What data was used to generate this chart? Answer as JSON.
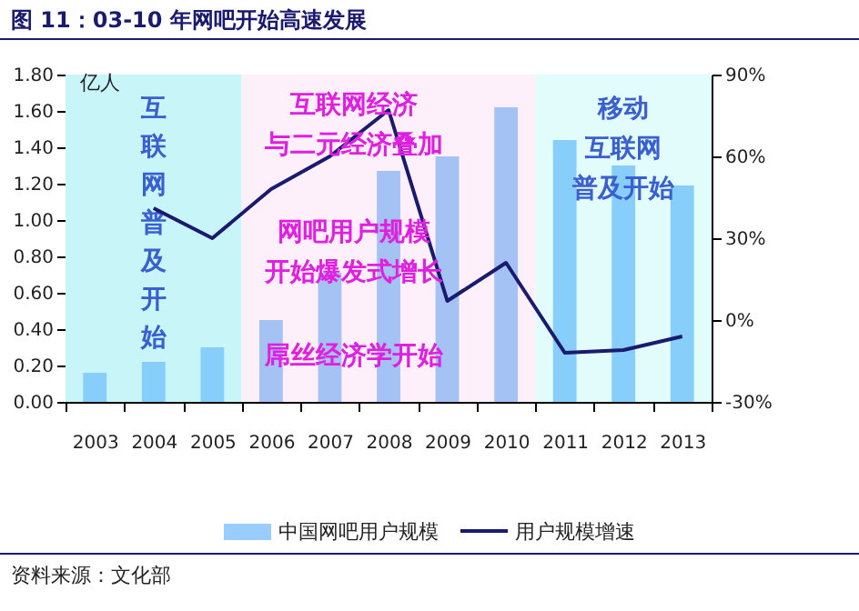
{
  "chart_data": {
    "type": "bar",
    "title": "图 11：03-10 年网吧开始高速发展",
    "ylabel": "亿人",
    "categories": [
      "2003",
      "2004",
      "2005",
      "2006",
      "2007",
      "2008",
      "2009",
      "2010",
      "2011",
      "2012",
      "2013"
    ],
    "series": [
      {
        "name": "中国网吧用户规模",
        "color": "#99ccff",
        "colors": [
          "#87cefa",
          "#87cefa",
          "#87cefa",
          "#a4c2f4",
          "#a4c2f4",
          "#a4c2f4",
          "#a4c2f4",
          "#a4c2f4",
          "#87cefa",
          "#87cefa",
          "#87cefa"
        ],
        "values": [
          0.16,
          0.22,
          0.3,
          0.45,
          0.71,
          1.27,
          1.35,
          1.62,
          1.44,
          1.3,
          1.19
        ]
      },
      {
        "name": "用户规模增速",
        "type": "line",
        "axis": "y2",
        "color": "#1a1a6e",
        "values": [
          null,
          41,
          30,
          48,
          60,
          77,
          7,
          21,
          -12,
          -11,
          -6
        ]
      }
    ],
    "ylim": [
      0,
      1.8
    ],
    "yticks": [
      {
        "value": 0,
        "label": "0.00"
      },
      {
        "value": 0.2,
        "label": "0.20"
      },
      {
        "value": 0.4,
        "label": "0.40"
      },
      {
        "value": 0.6,
        "label": "0.60"
      },
      {
        "value": 0.8,
        "label": "0.80"
      },
      {
        "value": 1,
        "label": "1.00"
      },
      {
        "value": 1.2,
        "label": "1.20"
      },
      {
        "value": 1.4,
        "label": "1.40"
      },
      {
        "value": 1.6,
        "label": "1.60"
      },
      {
        "value": 1.8,
        "label": "1.80"
      }
    ],
    "y2lim": [
      -30,
      90
    ],
    "y2ticks": [
      {
        "value": -30,
        "label": "-30%"
      },
      {
        "value": 0,
        "label": "0%"
      },
      {
        "value": 30,
        "label": "30%"
      },
      {
        "value": 60,
        "label": "60%"
      },
      {
        "value": 90,
        "label": "90%"
      }
    ],
    "bands": [
      {
        "axis": "x",
        "from": "2003",
        "to": "2005",
        "color": "#c8f5f8",
        "label": "互联网普及开始"
      },
      {
        "axis": "x",
        "from": "2006",
        "to": "2010",
        "color": "#fdf0fa"
      },
      {
        "axis": "x",
        "from": "2011",
        "to": "2013",
        "color": "#e2fbfb",
        "label": "移动互联网普及开始"
      }
    ],
    "annotations": [
      "互联网经济与二元经济叠加",
      "网吧用户规模开始爆发式增长",
      "屌丝经济学开始",
      "资料来源：文化部"
    ],
    "legend": "bottom",
    "grid": false
  }
}
